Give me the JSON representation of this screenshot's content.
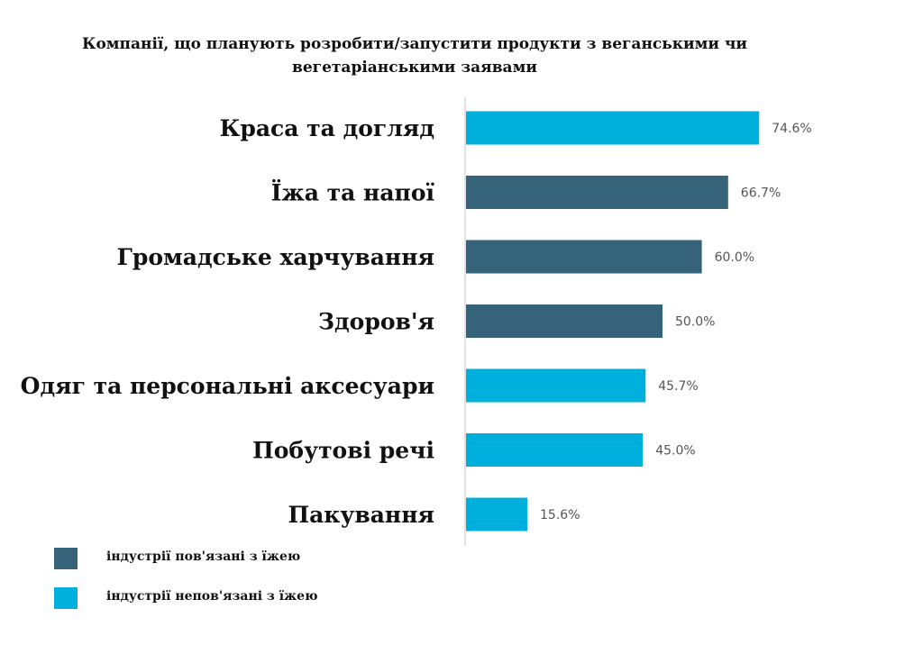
{
  "chart_data": {
    "type": "bar",
    "orientation": "horizontal",
    "title": "Компанії, що планують розробити/запустити продукти з веганськими чи вегетаріанськими заявами",
    "categories": [
      "Краса та догляд",
      "Їжа та напої",
      "Громадське харчування",
      "Здоров'я",
      "Одяг та персональні аксесуари",
      "Побутові речі",
      "Пакування"
    ],
    "values": [
      74.6,
      66.7,
      60.0,
      50.0,
      45.7,
      45.0,
      15.6
    ],
    "value_labels": [
      "74.6%",
      "66.7%",
      "60.0%",
      "50.0%",
      "45.7%",
      "45.0%",
      "15.6%"
    ],
    "bar_groups": [
      "unrelated",
      "related",
      "related",
      "related",
      "unrelated",
      "unrelated",
      "unrelated"
    ],
    "xlim": [
      0,
      100
    ],
    "xlabel": "",
    "ylabel": "",
    "grid": false,
    "legend": {
      "placement": "bottom-left",
      "items": [
        {
          "key": "related",
          "label": "індустрії пов'язані з їжею",
          "color": "#35637a"
        },
        {
          "key": "unrelated",
          "label": "індустрії непов'язані з їжею",
          "color": "#00b0dc"
        }
      ]
    }
  }
}
